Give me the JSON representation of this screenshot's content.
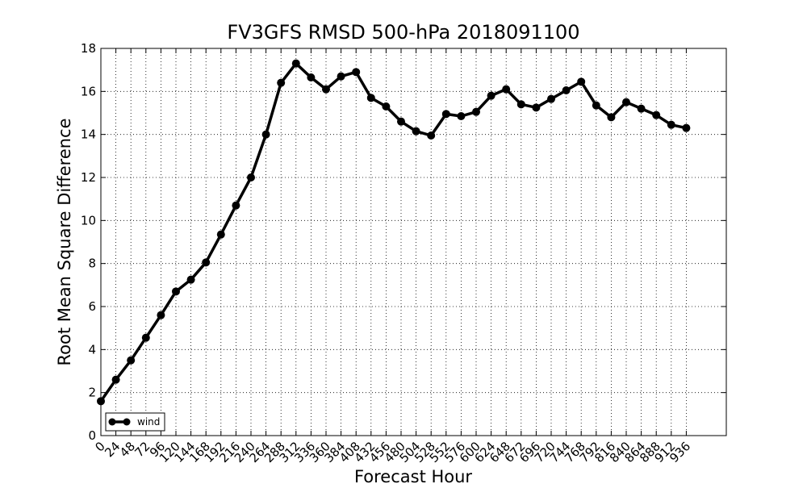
{
  "chart_data": {
    "type": "line",
    "title": "FV3GFS RMSD 500-hPa 2018091100",
    "xlabel": "Forecast Hour",
    "ylabel": "Root Mean Square Difference",
    "x": [
      0,
      24,
      48,
      72,
      96,
      120,
      144,
      168,
      192,
      216,
      240,
      264,
      288,
      312,
      336,
      360,
      384,
      408,
      432,
      456,
      480,
      504,
      528,
      552,
      576,
      600,
      624,
      648,
      672,
      696,
      720,
      744,
      768,
      792,
      816,
      840,
      864,
      888,
      912,
      936
    ],
    "series": [
      {
        "name": "wind",
        "color": "#000000",
        "values": [
          1.6,
          2.6,
          3.5,
          4.55,
          5.6,
          6.7,
          7.25,
          8.05,
          9.35,
          10.7,
          12.0,
          14.0,
          16.4,
          17.3,
          16.65,
          16.1,
          16.7,
          16.9,
          15.7,
          15.3,
          14.6,
          14.15,
          13.95,
          14.95,
          14.85,
          15.05,
          15.8,
          16.1,
          15.4,
          15.25,
          15.65,
          16.05,
          16.45,
          15.35,
          14.8,
          15.5,
          15.2,
          14.9,
          14.45,
          14.3
        ]
      }
    ],
    "xlim": [
      0,
      1000
    ],
    "xticks": [
      0,
      24,
      48,
      72,
      96,
      120,
      144,
      168,
      192,
      216,
      240,
      264,
      288,
      312,
      336,
      360,
      384,
      408,
      432,
      456,
      480,
      504,
      528,
      552,
      576,
      600,
      624,
      648,
      672,
      696,
      720,
      744,
      768,
      792,
      816,
      840,
      864,
      888,
      912,
      936
    ],
    "ylim": [
      0,
      18
    ],
    "yticks": [
      0,
      2,
      4,
      6,
      8,
      10,
      12,
      14,
      16,
      18
    ],
    "grid": true,
    "legend": "lower left"
  }
}
